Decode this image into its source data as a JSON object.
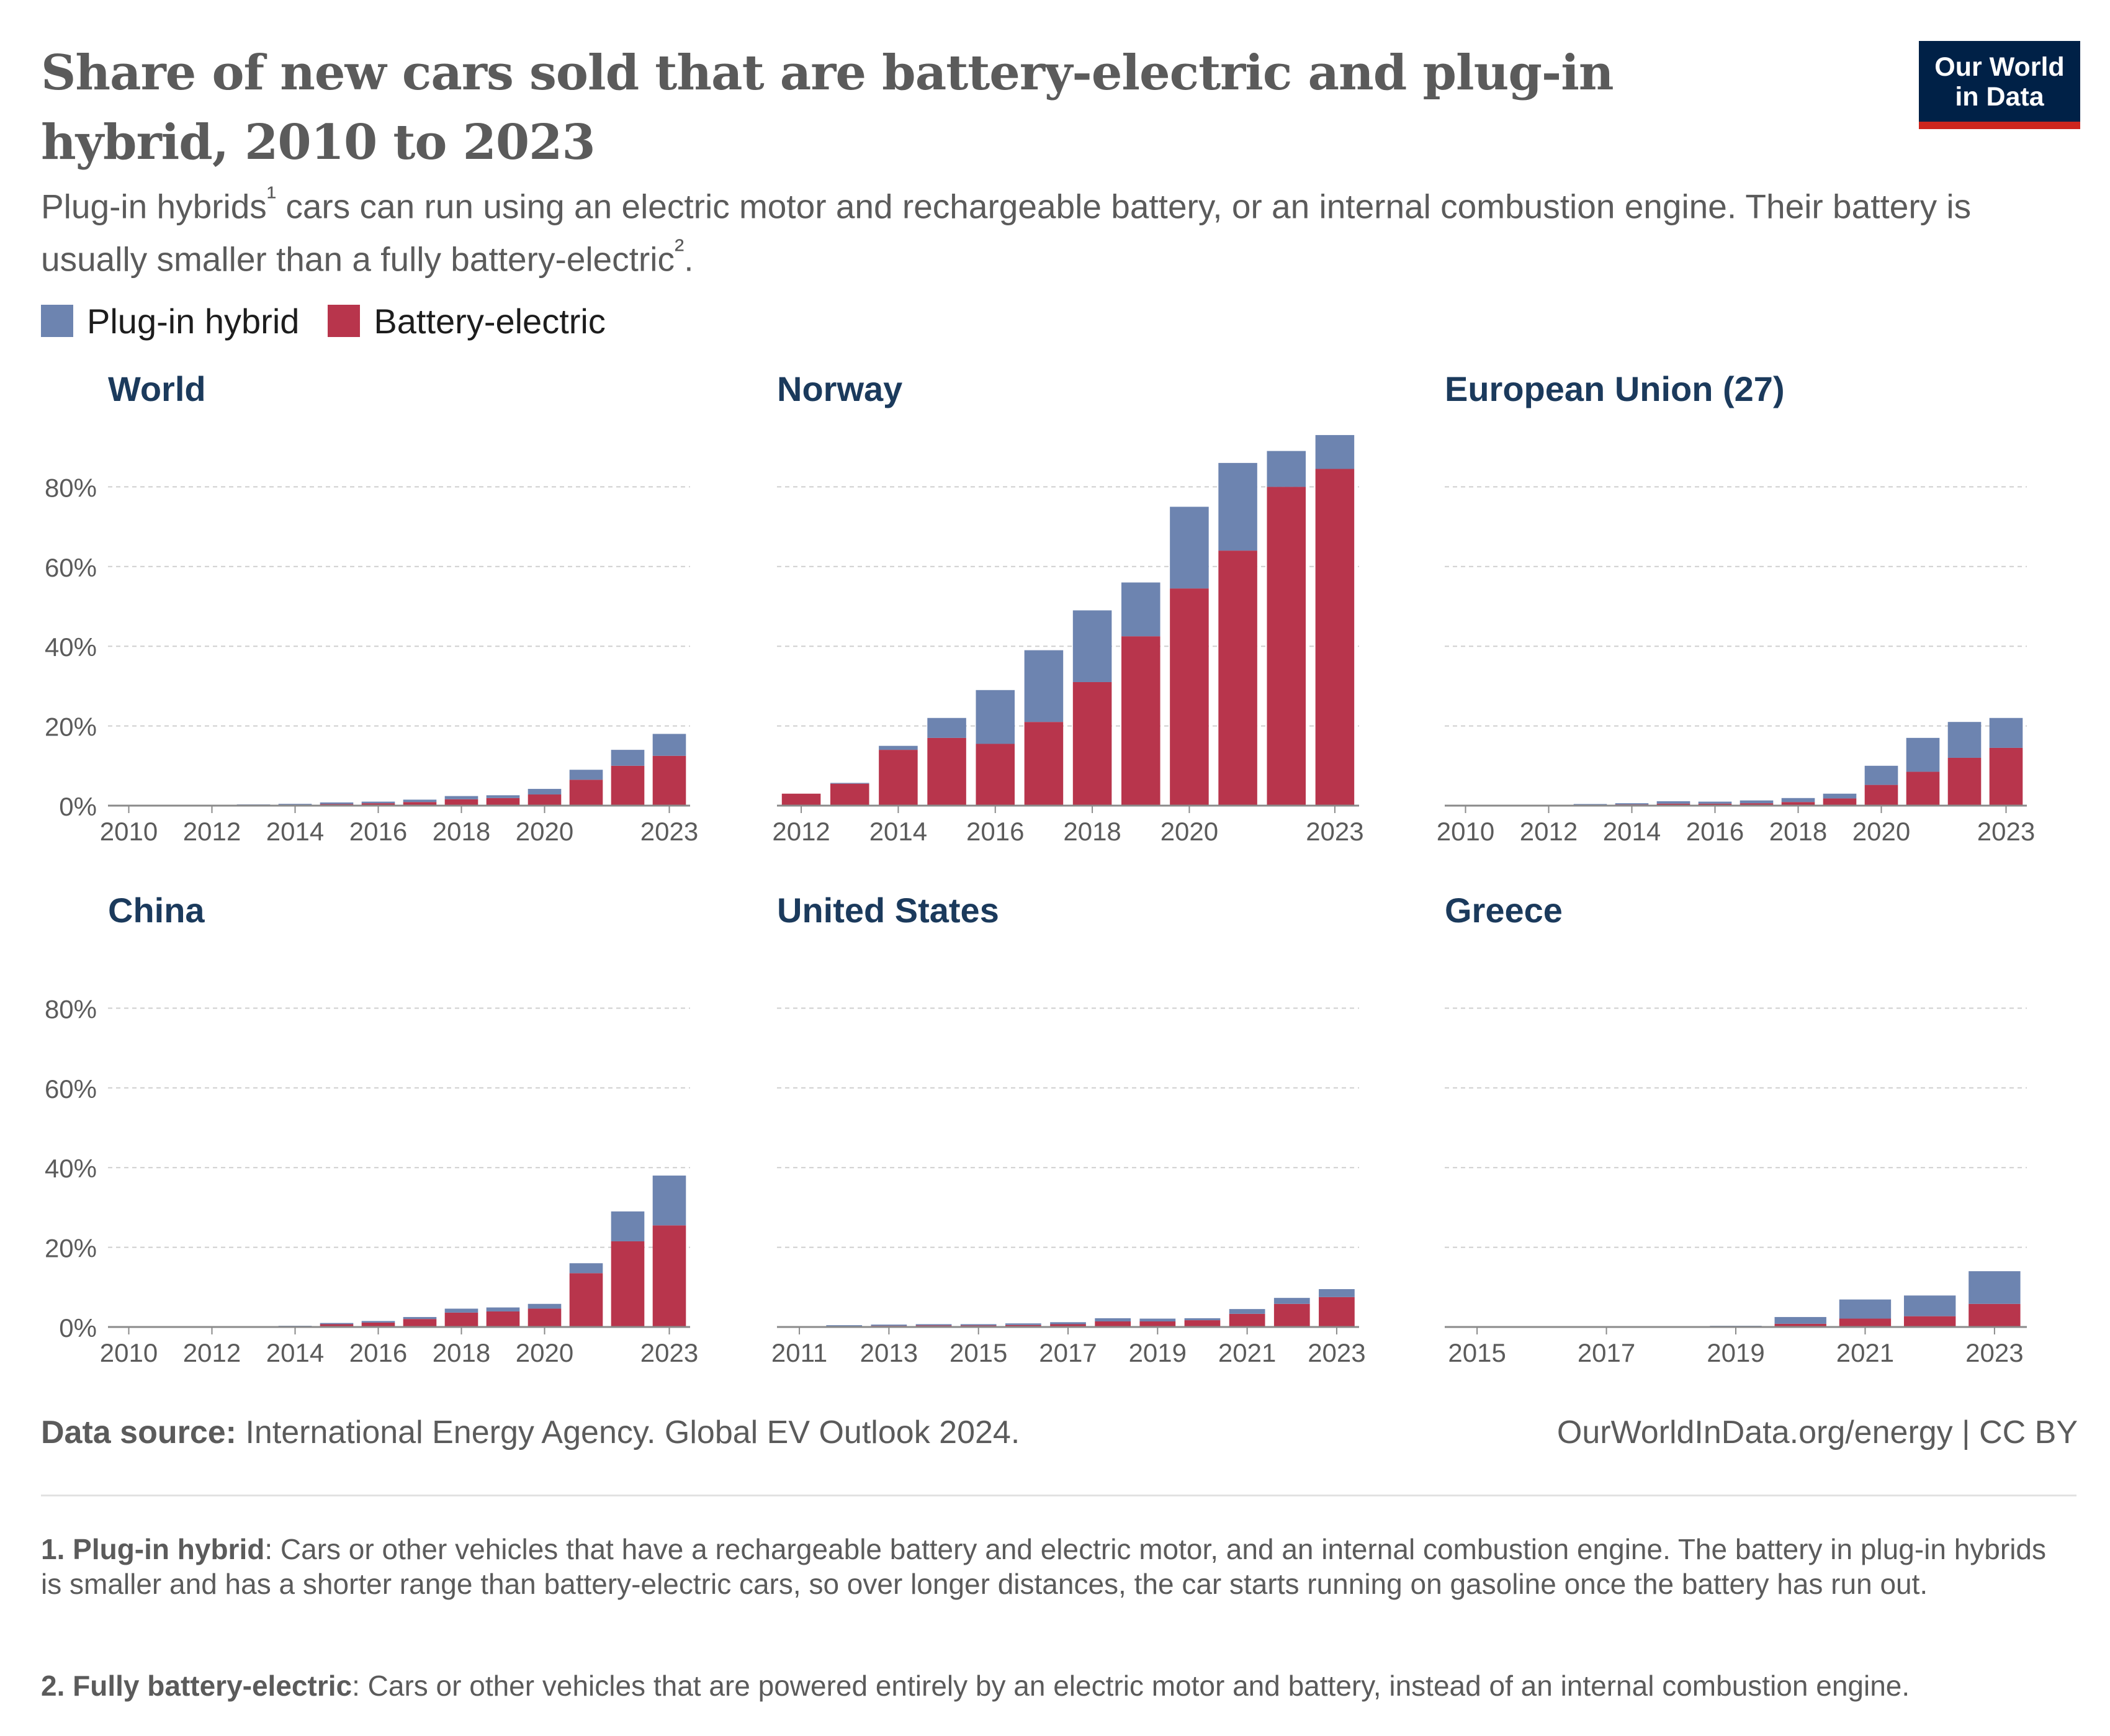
{
  "header": {
    "title": "Share of new cars sold that are battery-electric and plug-in hybrid, 2010 to 2023",
    "subtitle_part1": "Plug-in hybrids",
    "subtitle_sup1": "¹",
    "subtitle_part2": " cars can run using an electric motor and rechargeable battery, or an internal combustion engine. Their battery is usually smaller than a fully battery-electric",
    "subtitle_sup2": "²",
    "subtitle_part3": "."
  },
  "logo": {
    "line1": "Our World",
    "line2": "in Data"
  },
  "legend": [
    {
      "label": "Plug-in hybrid",
      "color": "#6d84b0"
    },
    {
      "label": "Battery-electric",
      "color": "#b8354c"
    }
  ],
  "colors": {
    "phev": "#6d84b0",
    "bev": "#b8354c",
    "panel_title": "#1b3a5c"
  },
  "chart_data": [
    {
      "type": "bar",
      "stacked": true,
      "title": "World",
      "categories": [
        2010,
        2011,
        2012,
        2013,
        2014,
        2015,
        2016,
        2017,
        2018,
        2019,
        2020,
        2021,
        2022,
        2023
      ],
      "xticks": [
        2010,
        2012,
        2014,
        2016,
        2018,
        2020,
        2023
      ],
      "yticks": [
        "0%",
        "20%",
        "40%",
        "60%",
        "80%"
      ],
      "ylim": [
        0,
        93
      ],
      "series": [
        {
          "name": "Battery-electric",
          "values": [
            0,
            0.05,
            0.1,
            0.15,
            0.25,
            0.4,
            0.6,
            0.9,
            1.6,
            1.9,
            2.8,
            6.5,
            10,
            12.5
          ]
        },
        {
          "name": "Plug-in hybrid",
          "values": [
            0,
            0.05,
            0.1,
            0.15,
            0.2,
            0.4,
            0.4,
            0.6,
            0.8,
            0.7,
            1.4,
            2.5,
            4,
            5.5
          ]
        }
      ]
    },
    {
      "type": "bar",
      "stacked": true,
      "title": "Norway",
      "categories": [
        2012,
        2013,
        2014,
        2015,
        2016,
        2017,
        2018,
        2019,
        2020,
        2021,
        2022,
        2023
      ],
      "xticks": [
        2012,
        2014,
        2016,
        2018,
        2020,
        2023
      ],
      "yticks": [],
      "ylim": [
        0,
        93
      ],
      "series": [
        {
          "name": "Battery-electric",
          "values": [
            3,
            5.5,
            14,
            17,
            15.5,
            21,
            31,
            42.5,
            54.5,
            64,
            80,
            84.5
          ]
        },
        {
          "name": "Plug-in hybrid",
          "values": [
            0,
            0.2,
            1,
            5,
            13.5,
            18,
            18,
            13.5,
            20.5,
            22,
            9,
            8.5
          ]
        }
      ]
    },
    {
      "type": "bar",
      "stacked": true,
      "title": "European Union (27)",
      "categories": [
        2010,
        2011,
        2012,
        2013,
        2014,
        2015,
        2016,
        2017,
        2018,
        2019,
        2020,
        2021,
        2022,
        2023
      ],
      "xticks": [
        2010,
        2012,
        2014,
        2016,
        2018,
        2020,
        2023
      ],
      "yticks": [],
      "ylim": [
        0,
        93
      ],
      "series": [
        {
          "name": "Battery-electric",
          "values": [
            0,
            0.05,
            0.1,
            0.2,
            0.3,
            0.5,
            0.5,
            0.6,
            0.9,
            1.8,
            5.2,
            8.5,
            12,
            14.5
          ]
        },
        {
          "name": "Plug-in hybrid",
          "values": [
            0,
            0.05,
            0.1,
            0.2,
            0.3,
            0.6,
            0.5,
            0.7,
            1,
            1.2,
            4.8,
            8.5,
            9,
            7.5
          ]
        }
      ]
    },
    {
      "type": "bar",
      "stacked": true,
      "title": "China",
      "categories": [
        2010,
        2011,
        2012,
        2013,
        2014,
        2015,
        2016,
        2017,
        2018,
        2019,
        2020,
        2021,
        2022,
        2023
      ],
      "xticks": [
        2010,
        2012,
        2014,
        2016,
        2018,
        2020,
        2023
      ],
      "yticks": [
        "0%",
        "20%",
        "40%",
        "60%",
        "80%"
      ],
      "ylim": [
        0,
        93
      ],
      "series": [
        {
          "name": "Battery-electric",
          "values": [
            0,
            0,
            0.05,
            0.1,
            0.2,
            0.7,
            1.1,
            2,
            3.6,
            3.9,
            4.6,
            13.5,
            21.5,
            25.5
          ]
        },
        {
          "name": "Plug-in hybrid",
          "values": [
            0,
            0,
            0.05,
            0.05,
            0.1,
            0.3,
            0.4,
            0.5,
            1,
            1,
            1.2,
            2.5,
            7.5,
            12.5
          ]
        }
      ]
    },
    {
      "type": "bar",
      "stacked": true,
      "title": "United States",
      "categories": [
        2011,
        2012,
        2013,
        2014,
        2015,
        2016,
        2017,
        2018,
        2019,
        2020,
        2021,
        2022,
        2023
      ],
      "xticks": [
        2011,
        2013,
        2015,
        2017,
        2019,
        2021,
        2023
      ],
      "yticks": [],
      "ylim": [
        0,
        93
      ],
      "series": [
        {
          "name": "Battery-electric",
          "values": [
            0.1,
            0.15,
            0.3,
            0.4,
            0.4,
            0.5,
            0.7,
            1.4,
            1.4,
            1.7,
            3.3,
            5.8,
            7.5
          ]
        },
        {
          "name": "Plug-in hybrid",
          "values": [
            0.1,
            0.3,
            0.3,
            0.3,
            0.3,
            0.4,
            0.5,
            0.8,
            0.7,
            0.5,
            1.2,
            1.5,
            2
          ]
        }
      ]
    },
    {
      "type": "bar",
      "stacked": true,
      "title": "Greece",
      "categories": [
        2015,
        2016,
        2017,
        2018,
        2019,
        2020,
        2021,
        2022,
        2023
      ],
      "xticks": [
        2015,
        2017,
        2019,
        2021,
        2023
      ],
      "yticks": [],
      "ylim": [
        0,
        93
      ],
      "series": [
        {
          "name": "Battery-electric",
          "values": [
            0,
            0,
            0,
            0,
            0.1,
            0.8,
            2.1,
            2.7,
            5.8
          ]
        },
        {
          "name": "Plug-in hybrid",
          "values": [
            0,
            0,
            0,
            0,
            0.2,
            1.7,
            4.8,
            5.2,
            8.2
          ]
        }
      ]
    }
  ],
  "footer": {
    "source_label": "Data source:",
    "source_text": " International Energy Agency. Global EV Outlook 2024.",
    "credit": "OurWorldInData.org/energy  | CC BY"
  },
  "notes": [
    {
      "label": "1. Plug-in hybrid",
      "text": ": Cars or other vehicles that have a rechargeable battery and electric motor, and an internal combustion engine. The battery in plug-in hybrids is smaller and has a shorter range than battery-electric cars, so over longer distances, the car starts running on gasoline once the battery has run out."
    },
    {
      "label": "2. Fully battery-electric",
      "text": ": Cars or other vehicles that are powered entirely by an electric motor and battery, instead of an internal combustion engine."
    }
  ]
}
